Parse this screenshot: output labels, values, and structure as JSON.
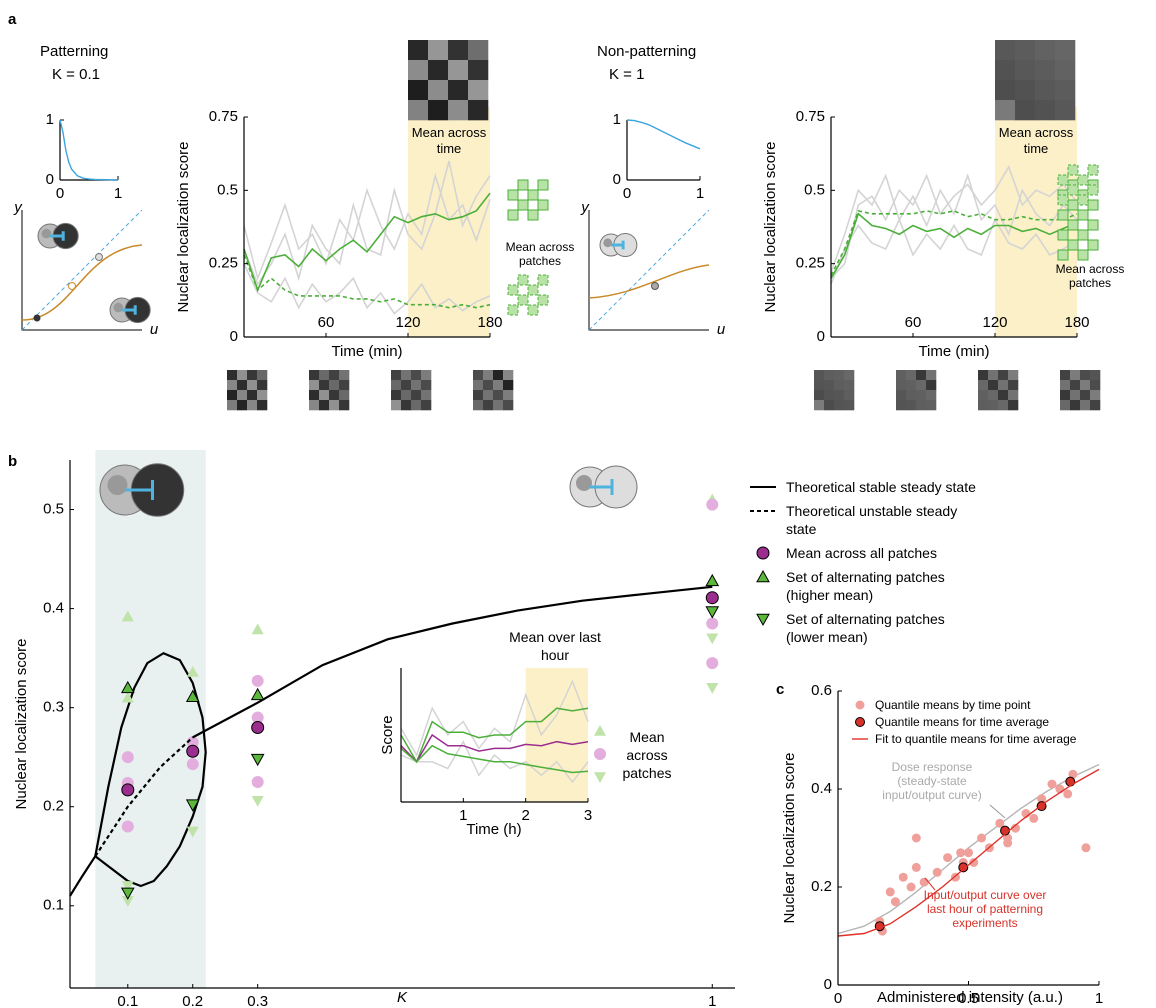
{
  "panel_labels": [
    "a",
    "b",
    "c"
  ],
  "chart_data": [
    {
      "type": "line",
      "title": "Patterning",
      "subtitle": "K = 0.1",
      "x": [
        0,
        0.05,
        0.1,
        0.15,
        0.2,
        0.3,
        0.4,
        0.5,
        0.6,
        0.8,
        1
      ],
      "values": [
        1,
        0.8,
        0.5,
        0.3,
        0.18,
        0.07,
        0.03,
        0.015,
        0.01,
        0.005,
        0
      ],
      "color": "#3aa6dd",
      "xlim": [
        0,
        1
      ],
      "ylim": [
        0,
        1
      ],
      "xticks": [
        0,
        1
      ],
      "yticks": [
        0,
        1
      ],
      "axis_labels": [
        "y",
        "u"
      ]
    },
    {
      "type": "line",
      "ylabel": "Nuclear localization score",
      "xlabel": "Time (min)",
      "x": [
        0,
        10,
        20,
        30,
        40,
        50,
        60,
        70,
        80,
        90,
        100,
        110,
        120,
        130,
        140,
        150,
        160,
        170,
        180
      ],
      "xlim": [
        0,
        180
      ],
      "ylim": [
        0,
        0.75
      ],
      "xticks": [
        60,
        120,
        180
      ],
      "yticks": [
        0,
        0.25,
        0.5,
        0.75
      ],
      "highlight": [
        120,
        180
      ],
      "annotations": [
        "Mean across time",
        "Mean across patches"
      ],
      "series": [
        {
          "color": "#d4d4d4",
          "values": [
            0.38,
            0.2,
            0.32,
            0.45,
            0.3,
            0.35,
            0.25,
            0.4,
            0.33,
            0.5,
            0.38,
            0.3,
            0.42,
            0.35,
            0.55,
            0.4,
            0.45,
            0.33,
            0.47
          ]
        },
        {
          "color": "#d4d4d4",
          "values": [
            0.25,
            0.15,
            0.12,
            0.2,
            0.1,
            0.18,
            0.12,
            0.15,
            0.2,
            0.1,
            0.15,
            0.08,
            0.12,
            0.18,
            0.1,
            0.13,
            0.09,
            0.12,
            0.14
          ]
        },
        {
          "color": "#d4d4d4",
          "values": [
            0.3,
            0.18,
            0.25,
            0.35,
            0.2,
            0.38,
            0.3,
            0.25,
            0.45,
            0.3,
            0.28,
            0.5,
            0.35,
            0.3,
            0.42,
            0.6,
            0.38,
            0.48,
            0.55
          ]
        },
        {
          "color": "#4caf3a",
          "values": [
            0.3,
            0.16,
            0.27,
            0.28,
            0.24,
            0.3,
            0.26,
            0.3,
            0.33,
            0.29,
            0.35,
            0.41,
            0.39,
            0.41,
            0.42,
            0.4,
            0.41,
            0.43,
            0.49
          ]
        },
        {
          "color": "#4caf3a",
          "dash": true,
          "values": [
            0.28,
            0.16,
            0.2,
            0.16,
            0.14,
            0.14,
            0.14,
            0.14,
            0.13,
            0.13,
            0.12,
            0.13,
            0.11,
            0.11,
            0.11,
            0.1,
            0.11,
            0.1,
            0.11
          ]
        }
      ]
    },
    {
      "type": "line",
      "title": "Non-patterning",
      "subtitle": "K = 1",
      "x": [
        0,
        0.1,
        0.2,
        0.3,
        0.4,
        0.5,
        0.6,
        0.7,
        0.8,
        0.9,
        1
      ],
      "values": [
        1,
        0.99,
        0.96,
        0.92,
        0.86,
        0.8,
        0.74,
        0.68,
        0.62,
        0.57,
        0.52
      ],
      "color": "#3aa6dd",
      "xlim": [
        0,
        1
      ],
      "ylim": [
        0,
        1
      ],
      "xticks": [
        0,
        1
      ],
      "yticks": [
        0,
        1
      ],
      "axis_labels": [
        "y",
        "u"
      ]
    },
    {
      "type": "line",
      "ylabel": "Nuclear localization score",
      "xlabel": "Time (min)",
      "x": [
        0,
        10,
        20,
        30,
        40,
        50,
        60,
        70,
        80,
        90,
        100,
        110,
        120,
        130,
        140,
        150,
        160,
        170,
        180
      ],
      "xlim": [
        0,
        180
      ],
      "ylim": [
        0,
        0.75
      ],
      "xticks": [
        60,
        120,
        180
      ],
      "yticks": [
        0,
        0.25,
        0.5,
        0.75
      ],
      "highlight": [
        120,
        180
      ],
      "annotations": [
        "Mean across time",
        "Mean across patches"
      ],
      "series": [
        {
          "color": "#d4d4d4",
          "values": [
            0.22,
            0.35,
            0.5,
            0.45,
            0.55,
            0.4,
            0.48,
            0.38,
            0.5,
            0.42,
            0.55,
            0.4,
            0.45,
            0.35,
            0.5,
            0.42,
            0.38,
            0.45,
            0.4
          ]
        },
        {
          "color": "#d4d4d4",
          "values": [
            0.18,
            0.3,
            0.38,
            0.32,
            0.3,
            0.4,
            0.28,
            0.35,
            0.3,
            0.38,
            0.3,
            0.28,
            0.4,
            0.32,
            0.3,
            0.35,
            0.28,
            0.3,
            0.33
          ]
        },
        {
          "color": "#d4d4d4",
          "values": [
            0.2,
            0.25,
            0.45,
            0.48,
            0.4,
            0.5,
            0.45,
            0.55,
            0.42,
            0.48,
            0.52,
            0.45,
            0.5,
            0.58,
            0.45,
            0.5,
            0.48,
            0.52,
            0.46
          ]
        },
        {
          "color": "#4caf3a",
          "values": [
            0.2,
            0.28,
            0.42,
            0.38,
            0.37,
            0.35,
            0.38,
            0.36,
            0.37,
            0.34,
            0.37,
            0.35,
            0.38,
            0.38,
            0.36,
            0.37,
            0.35,
            0.37,
            0.39
          ]
        },
        {
          "color": "#4caf3a",
          "dash": true,
          "values": [
            0.21,
            0.3,
            0.43,
            0.42,
            0.42,
            0.42,
            0.42,
            0.43,
            0.42,
            0.43,
            0.41,
            0.42,
            0.4,
            0.4,
            0.41,
            0.4,
            0.4,
            0.4,
            0.42
          ]
        }
      ]
    },
    {
      "type": "scatter",
      "xlabel": "K",
      "ylabel": "Nuclear localization score",
      "xlim": [
        0.011,
        1.035
      ],
      "ylim": [
        0.017,
        0.55
      ],
      "xticks": [
        0.1,
        0.2,
        0.3,
        1
      ],
      "yticks": [
        0.1,
        0.2,
        0.3,
        0.4,
        0.5
      ],
      "highlight": [
        0.05,
        0.22
      ],
      "series": [
        {
          "name": "Theoretical stable steady state",
          "kind": "line",
          "color": "#000000",
          "x": [
            0.011,
            0.03,
            0.05,
            0.05,
            0.2,
            0.3,
            0.4,
            0.5,
            0.6,
            0.7,
            0.8,
            0.9,
            1
          ],
          "values": [
            0.11,
            0.13,
            0.15,
            null,
            0.27,
            0.305,
            0.343,
            0.369,
            0.385,
            0.398,
            0.408,
            0.415,
            0.422
          ]
        },
        {
          "name": "Theoretical unstable steady state",
          "kind": "line",
          "dash": true,
          "color": "#000000",
          "x": [
            0.05,
            0.1,
            0.15,
            0.2
          ],
          "values": [
            0.15,
            0.2,
            0.24,
            0.27
          ]
        },
        {
          "name": "Mean across all patches",
          "marker": "circle",
          "color": "#9b2d8e",
          "x": [
            0.1,
            0.2,
            0.3,
            1
          ],
          "values": [
            0.217,
            0.256,
            0.28,
            0.411
          ]
        },
        {
          "name": "Set of alternating patches (higher mean)",
          "marker": "triangle-up",
          "color": "#5cb83a",
          "x": [
            0.1,
            0.2,
            0.3,
            1
          ],
          "values": [
            0.32,
            0.311,
            0.313,
            0.428
          ]
        },
        {
          "name": "Set of alternating patches (lower mean)",
          "marker": "triangle-down",
          "color": "#5cb83a",
          "x": [
            0.1,
            0.2,
            0.3,
            1
          ],
          "values": [
            0.113,
            0.202,
            0.248,
            0.397
          ]
        },
        {
          "kind": "line",
          "color": "#000000",
          "x": [
            0.05,
            0.07,
            0.09,
            0.11,
            0.13,
            0.155,
            0.18,
            0.2,
            0.215,
            0.22,
            0.215,
            0.2,
            0.18,
            0.16,
            0.14,
            0.12,
            0.1,
            0.08,
            0.06,
            0.05
          ],
          "values": [
            0.15,
            0.22,
            0.28,
            0.32,
            0.345,
            0.355,
            0.348,
            0.325,
            0.29,
            0.255,
            0.22,
            0.19,
            0.16,
            0.14,
            0.125,
            0.12,
            0.125,
            0.135,
            0.145,
            0.15
          ]
        },
        {
          "marker": "triangle-up",
          "color": "#bfe3a8",
          "x": [
            0.1,
            0.1,
            0.2,
            0.3,
            1
          ],
          "values": [
            0.392,
            0.31,
            0.336,
            0.379,
            0.51
          ]
        },
        {
          "marker": "triangle-down",
          "color": "#bfe3a8",
          "x": [
            0.1,
            0.1,
            0.2,
            0.3,
            1,
            1
          ],
          "values": [
            0.105,
            0.12,
            0.175,
            0.206,
            0.32,
            0.37
          ]
        },
        {
          "marker": "circle",
          "color": "#e3aede",
          "x": [
            0.1,
            0.1,
            0.1,
            0.2,
            0.2,
            0.3,
            0.3,
            0.3,
            1,
            1,
            1
          ],
          "values": [
            0.18,
            0.224,
            0.25,
            0.243,
            0.265,
            0.225,
            0.327,
            0.29,
            0.345,
            0.385,
            0.505
          ]
        }
      ]
    },
    {
      "type": "line",
      "title": "Mean over last hour",
      "ylabel": "Score",
      "xlabel": "Time (h)",
      "x": [
        0,
        0.25,
        0.5,
        0.75,
        1,
        1.25,
        1.5,
        1.75,
        2,
        2.25,
        2.5,
        2.75,
        3
      ],
      "xlim": [
        0,
        3
      ],
      "ylim": [
        0,
        1
      ],
      "xticks": [
        1,
        2,
        3
      ],
      "highlight": [
        2,
        3
      ],
      "annotations": [
        "Mean across patches"
      ],
      "series": [
        {
          "color": "#d4d4d4",
          "values": [
            0.55,
            0.35,
            0.7,
            0.5,
            0.6,
            0.4,
            0.55,
            0.45,
            0.8,
            0.5,
            0.65,
            0.9,
            0.6
          ]
        },
        {
          "color": "#d4d4d4",
          "values": [
            0.35,
            0.3,
            0.3,
            0.25,
            0.45,
            0.2,
            0.35,
            0.25,
            0.3,
            0.2,
            0.3,
            0.15,
            0.3
          ]
        },
        {
          "color": "#4caf3a",
          "values": [
            0.5,
            0.3,
            0.6,
            0.52,
            0.52,
            0.48,
            0.5,
            0.5,
            0.6,
            0.6,
            0.7,
            0.68,
            0.7
          ]
        },
        {
          "color": "#9b2d8e",
          "values": [
            0.42,
            0.3,
            0.5,
            0.42,
            0.42,
            0.38,
            0.4,
            0.4,
            0.43,
            0.42,
            0.45,
            0.43,
            0.45
          ]
        },
        {
          "color": "#4caf3a",
          "values": [
            0.4,
            0.3,
            0.42,
            0.36,
            0.34,
            0.32,
            0.3,
            0.3,
            0.28,
            0.26,
            0.24,
            0.22,
            0.23
          ]
        }
      ]
    },
    {
      "type": "scatter",
      "xlabel": "Administered intensity (a.u.)",
      "ylabel": "Nuclear localization score",
      "xlim": [
        0,
        1
      ],
      "ylim": [
        0,
        0.6
      ],
      "xticks": [
        0,
        0.5,
        1
      ],
      "yticks": [
        0,
        0.2,
        0.4,
        0.6
      ],
      "annotations": [
        "Dose response (steady-state input/output curve)",
        "Input/output curve over last hour of patterning experiments"
      ],
      "series": [
        {
          "name": "Quantile means by time point",
          "marker": "circle",
          "color": "#f0a09a",
          "x": [
            0.16,
            0.17,
            0.2,
            0.22,
            0.25,
            0.28,
            0.3,
            0.33,
            0.38,
            0.42,
            0.45,
            0.47,
            0.5,
            0.52,
            0.55,
            0.58,
            0.62,
            0.65,
            0.68,
            0.72,
            0.75,
            0.78,
            0.82,
            0.85,
            0.88,
            0.9,
            0.95,
            0.3,
            0.48,
            0.65
          ],
          "values": [
            0.13,
            0.11,
            0.19,
            0.17,
            0.22,
            0.2,
            0.24,
            0.21,
            0.23,
            0.26,
            0.22,
            0.27,
            0.27,
            0.25,
            0.3,
            0.28,
            0.33,
            0.3,
            0.32,
            0.35,
            0.34,
            0.38,
            0.41,
            0.4,
            0.39,
            0.43,
            0.28,
            0.3,
            0.25,
            0.29
          ]
        },
        {
          "name": "Quantile means for time average",
          "marker": "circle",
          "stroke": true,
          "color": "#d6322a",
          "x": [
            0.16,
            0.48,
            0.64,
            0.78,
            0.89
          ],
          "values": [
            0.12,
            0.24,
            0.315,
            0.365,
            0.415
          ]
        },
        {
          "name": "Fit to quantile means for time average",
          "kind": "line",
          "color": "#e0302a",
          "x": [
            0,
            0.1,
            0.2,
            0.3,
            0.4,
            0.5,
            0.6,
            0.7,
            0.8,
            0.9,
            1
          ],
          "values": [
            0.1,
            0.105,
            0.125,
            0.16,
            0.2,
            0.245,
            0.29,
            0.335,
            0.375,
            0.41,
            0.44
          ]
        },
        {
          "kind": "line",
          "color": "#b5b5b5",
          "x": [
            0,
            0.1,
            0.2,
            0.3,
            0.4,
            0.5,
            0.6,
            0.7,
            0.8,
            0.9,
            1
          ],
          "values": [
            0.105,
            0.12,
            0.15,
            0.19,
            0.235,
            0.28,
            0.32,
            0.36,
            0.395,
            0.425,
            0.45
          ]
        }
      ]
    }
  ]
}
